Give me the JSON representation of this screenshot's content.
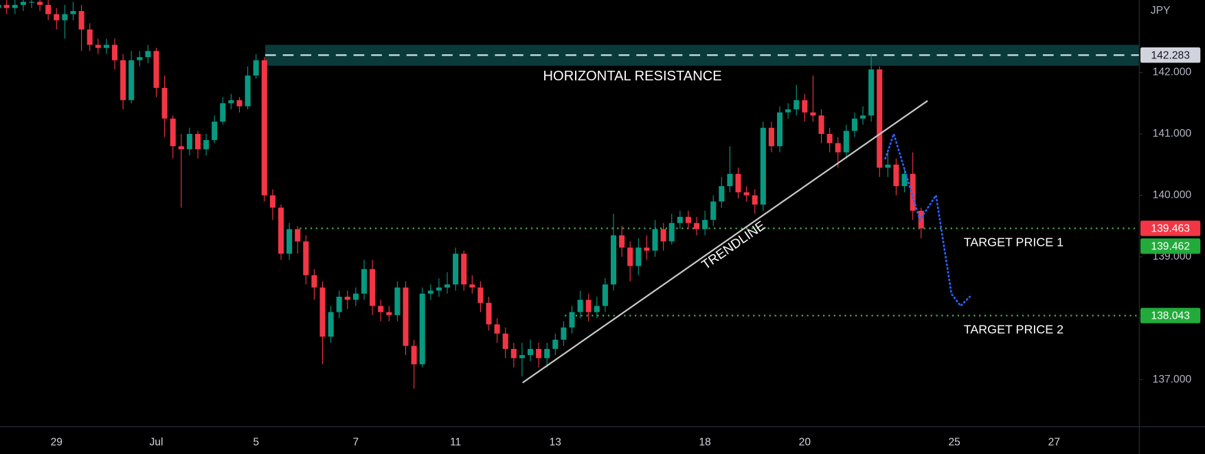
{
  "chart_data": {
    "type": "candlestick",
    "currency": "JPY",
    "up_color": "#089981",
    "down_color": "#f23645",
    "ylim": [
      136.24,
      143.18
    ],
    "yticks": [
      {
        "value": 137,
        "label": "137.000"
      },
      {
        "value": 138,
        "label": "138.000"
      },
      {
        "value": 139,
        "label": "139.000"
      },
      {
        "value": 140,
        "label": "140.000"
      },
      {
        "value": 141,
        "label": "141.000"
      },
      {
        "value": 142,
        "label": "142.000"
      }
    ],
    "categories": [
      null,
      null,
      null,
      null,
      null,
      null,
      null,
      "29",
      null,
      null,
      null,
      null,
      null,
      null,
      null,
      null,
      null,
      null,
      null,
      "Jul",
      null,
      null,
      null,
      null,
      null,
      null,
      null,
      null,
      null,
      null,
      null,
      "5",
      null,
      null,
      null,
      null,
      null,
      null,
      null,
      null,
      null,
      null,
      null,
      "7",
      null,
      null,
      null,
      null,
      null,
      null,
      null,
      null,
      null,
      null,
      null,
      "11",
      null,
      null,
      null,
      null,
      null,
      null,
      null,
      null,
      null,
      null,
      null,
      "13",
      null,
      null,
      null,
      null,
      null,
      null,
      null,
      null,
      null,
      null,
      null,
      null,
      null,
      null,
      null,
      null,
      null,
      "18",
      null,
      null,
      null,
      null,
      null,
      null,
      null,
      null,
      null,
      null,
      null,
      "20",
      null,
      null,
      null,
      null,
      null,
      null,
      null,
      null,
      null,
      null,
      null,
      null,
      null,
      null,
      null,
      null,
      null,
      "25",
      null,
      null,
      null,
      null,
      null,
      null,
      null,
      null,
      null,
      null,
      null,
      "27",
      null,
      null,
      null,
      null,
      null,
      null,
      null,
      null,
      null
    ],
    "open": [
      143.05,
      143.1,
      143.05,
      143.1,
      143.15,
      143.15,
      143.1,
      142.95,
      142.85,
      142.95,
      143.0,
      142.7,
      142.45,
      142.4,
      142.45,
      142.2,
      141.55,
      142.2,
      142.25,
      142.35,
      141.75,
      141.25,
      140.8,
      140.75,
      141.0,
      140.75,
      140.9,
      141.2,
      141.5,
      141.55,
      141.45,
      141.95,
      142.2,
      140.0,
      139.8,
      139.05,
      139.45,
      139.25,
      138.7,
      138.5,
      137.7,
      138.1,
      138.35,
      138.3,
      138.4,
      138.8,
      138.2,
      138.1,
      138.05,
      138.5,
      137.55,
      137.25,
      138.4,
      138.45,
      138.5,
      138.55,
      139.05,
      138.55,
      138.5,
      138.25,
      137.9,
      137.75,
      137.5,
      137.35,
      137.4,
      137.5,
      137.35,
      137.5,
      137.65,
      137.85,
      138.1,
      138.3,
      138.1,
      138.2,
      138.55,
      139.35,
      139.15,
      138.85,
      139.15,
      139.1,
      139.45,
      139.25,
      139.55,
      139.65,
      139.55,
      139.45,
      139.6,
      139.9,
      140.15,
      140.35,
      140.05,
      140.0,
      139.85,
      141.1,
      140.8,
      141.35,
      141.4,
      141.55,
      141.35,
      141.3,
      141.0,
      140.85,
      140.7,
      141.05,
      141.25,
      141.3,
      142.05,
      140.45,
      140.5,
      140.15,
      140.35,
      139.75,
      null,
      null,
      null,
      null,
      null,
      null,
      null,
      null,
      null,
      null,
      null,
      null,
      null,
      null,
      null,
      null,
      null,
      null,
      null,
      null,
      null,
      null,
      null,
      null,
      null
    ],
    "high": [
      143.2,
      143.2,
      143.2,
      143.25,
      143.25,
      143.25,
      143.2,
      143.05,
      143.1,
      143.15,
      143.1,
      142.8,
      142.55,
      142.55,
      142.55,
      142.3,
      142.35,
      142.35,
      142.45,
      142.4,
      141.95,
      141.3,
      141.0,
      141.1,
      141.05,
      141.0,
      141.3,
      141.6,
      141.65,
      141.6,
      142.1,
      142.3,
      142.25,
      140.1,
      139.85,
      139.55,
      139.5,
      139.35,
      138.8,
      138.6,
      138.2,
      138.45,
      138.45,
      138.5,
      138.95,
      138.95,
      138.3,
      138.2,
      138.6,
      138.6,
      137.65,
      138.5,
      138.55,
      138.65,
      138.75,
      139.15,
      139.1,
      138.7,
      138.6,
      138.35,
      138.0,
      137.85,
      137.6,
      137.6,
      137.65,
      137.6,
      137.6,
      137.75,
      137.95,
      138.2,
      138.45,
      138.4,
      138.35,
      138.65,
      139.7,
      139.5,
      139.25,
      139.3,
      139.35,
      139.6,
      139.55,
      139.7,
      139.75,
      139.75,
      139.65,
      139.75,
      140.0,
      140.3,
      140.8,
      140.45,
      140.15,
      140.1,
      141.2,
      141.2,
      141.45,
      141.5,
      141.8,
      141.65,
      141.95,
      141.4,
      141.1,
      140.95,
      141.15,
      141.35,
      141.45,
      142.3,
      142.1,
      140.7,
      140.6,
      140.45,
      140.7,
      139.8,
      null,
      null,
      null,
      null,
      null,
      null,
      null,
      null,
      null,
      null,
      null,
      null,
      null,
      null,
      null,
      null,
      null,
      null,
      null,
      null,
      null,
      null,
      null,
      null,
      null
    ],
    "low": [
      142.95,
      142.95,
      142.95,
      143.0,
      143.05,
      143.0,
      142.85,
      142.7,
      142.55,
      142.85,
      142.35,
      142.35,
      142.3,
      142.3,
      142.05,
      141.4,
      141.5,
      142.1,
      142.15,
      141.6,
      140.95,
      140.6,
      139.8,
      140.65,
      140.6,
      140.65,
      140.85,
      141.15,
      141.4,
      141.35,
      141.4,
      141.9,
      139.9,
      139.6,
      138.95,
      138.95,
      139.05,
      138.55,
      138.3,
      137.25,
      137.6,
      138.0,
      138.15,
      138.2,
      138.3,
      138.05,
      137.95,
      137.95,
      137.95,
      137.4,
      136.85,
      137.2,
      138.3,
      138.35,
      138.4,
      138.45,
      138.45,
      138.4,
      138.1,
      137.8,
      137.6,
      137.35,
      137.2,
      137.05,
      137.3,
      137.2,
      137.2,
      137.4,
      137.55,
      137.75,
      138.0,
      137.95,
      138.0,
      138.1,
      138.45,
      139.0,
      138.6,
      138.7,
      138.95,
      139.0,
      139.1,
      139.2,
      139.45,
      139.45,
      139.35,
      139.35,
      139.5,
      139.8,
      140.05,
      139.95,
      139.9,
      139.7,
      139.75,
      140.7,
      140.7,
      141.25,
      141.3,
      141.2,
      141.2,
      140.85,
      140.7,
      140.45,
      140.6,
      140.95,
      141.15,
      141.2,
      140.3,
      140.3,
      140.0,
      140.05,
      139.6,
      139.3,
      null,
      null,
      null,
      null,
      null,
      null,
      null,
      null,
      null,
      null,
      null,
      null,
      null,
      null,
      null,
      null,
      null,
      null,
      null,
      null,
      null,
      null,
      null,
      null,
      null
    ],
    "close": [
      143.1,
      143.05,
      143.1,
      143.15,
      143.15,
      143.1,
      142.95,
      142.85,
      142.95,
      143.0,
      142.7,
      142.45,
      142.4,
      142.45,
      142.2,
      141.55,
      142.2,
      142.25,
      142.35,
      141.75,
      141.25,
      140.8,
      140.75,
      141.0,
      140.75,
      140.9,
      141.2,
      141.5,
      141.55,
      141.45,
      141.95,
      142.2,
      140.0,
      139.8,
      139.05,
      139.45,
      139.25,
      138.7,
      138.5,
      137.7,
      138.1,
      138.35,
      138.3,
      138.4,
      138.8,
      138.2,
      138.1,
      138.05,
      138.5,
      137.55,
      137.25,
      138.4,
      138.45,
      138.5,
      138.55,
      139.05,
      138.55,
      138.5,
      138.25,
      137.9,
      137.75,
      137.5,
      137.35,
      137.4,
      137.5,
      137.35,
      137.5,
      137.65,
      137.85,
      138.1,
      138.3,
      138.1,
      138.2,
      138.55,
      139.35,
      139.15,
      138.85,
      139.15,
      139.1,
      139.45,
      139.25,
      139.55,
      139.65,
      139.55,
      139.45,
      139.6,
      139.9,
      140.15,
      140.35,
      140.05,
      140.0,
      139.85,
      141.1,
      140.8,
      141.35,
      141.4,
      141.55,
      141.35,
      141.3,
      141.0,
      140.85,
      140.7,
      141.05,
      141.25,
      141.3,
      142.05,
      140.45,
      140.5,
      140.15,
      140.35,
      139.75,
      139.463,
      null,
      null,
      null,
      null,
      null,
      null,
      null,
      null,
      null,
      null,
      null,
      null,
      null,
      null,
      null,
      null,
      null,
      null,
      null,
      null,
      null,
      null,
      null,
      null,
      null
    ],
    "last_price": {
      "value": 139.463,
      "label": "139.463"
    },
    "resistance": {
      "label": "HORIZONTAL RESISTANCE",
      "price": {
        "value": 142.283,
        "label": "142.283"
      },
      "zone": [
        142.11,
        142.45
      ]
    },
    "targets": [
      {
        "name": "TARGET PRICE 1",
        "price": {
          "value": 139.462,
          "label": "139.462"
        }
      },
      {
        "name": "TARGET PRICE 2",
        "price": {
          "value": 138.043,
          "label": "138.043"
        }
      }
    ],
    "trendline": {
      "label": "TRENDLINE",
      "from": 136.95,
      "to": 141.54
    },
    "projection": [
      140.6,
      141.0,
      140.3,
      139.6,
      140.0,
      138.4,
      138.2,
      138.35
    ]
  }
}
